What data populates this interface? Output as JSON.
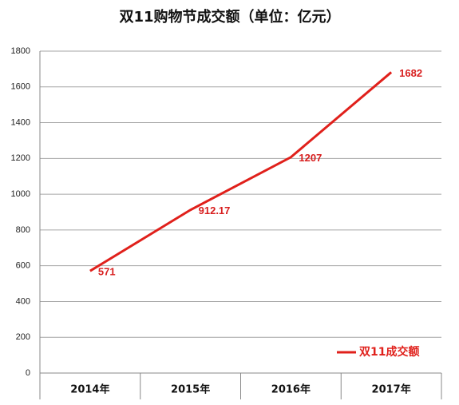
{
  "chart_data": {
    "type": "line",
    "title": "双11购物节成交额（单位：亿元）",
    "categories": [
      "2014年",
      "2015年",
      "2016年",
      "2017年"
    ],
    "series": [
      {
        "name": "双11成交额",
        "color": "#e0201b",
        "values": [
          571,
          912.17,
          1207,
          1682
        ]
      }
    ],
    "ylim": [
      0,
      1800
    ],
    "yticks": [
      0,
      200,
      400,
      600,
      800,
      1000,
      1200,
      1400,
      1600,
      1800
    ],
    "grid": true,
    "legend": "lower right"
  }
}
